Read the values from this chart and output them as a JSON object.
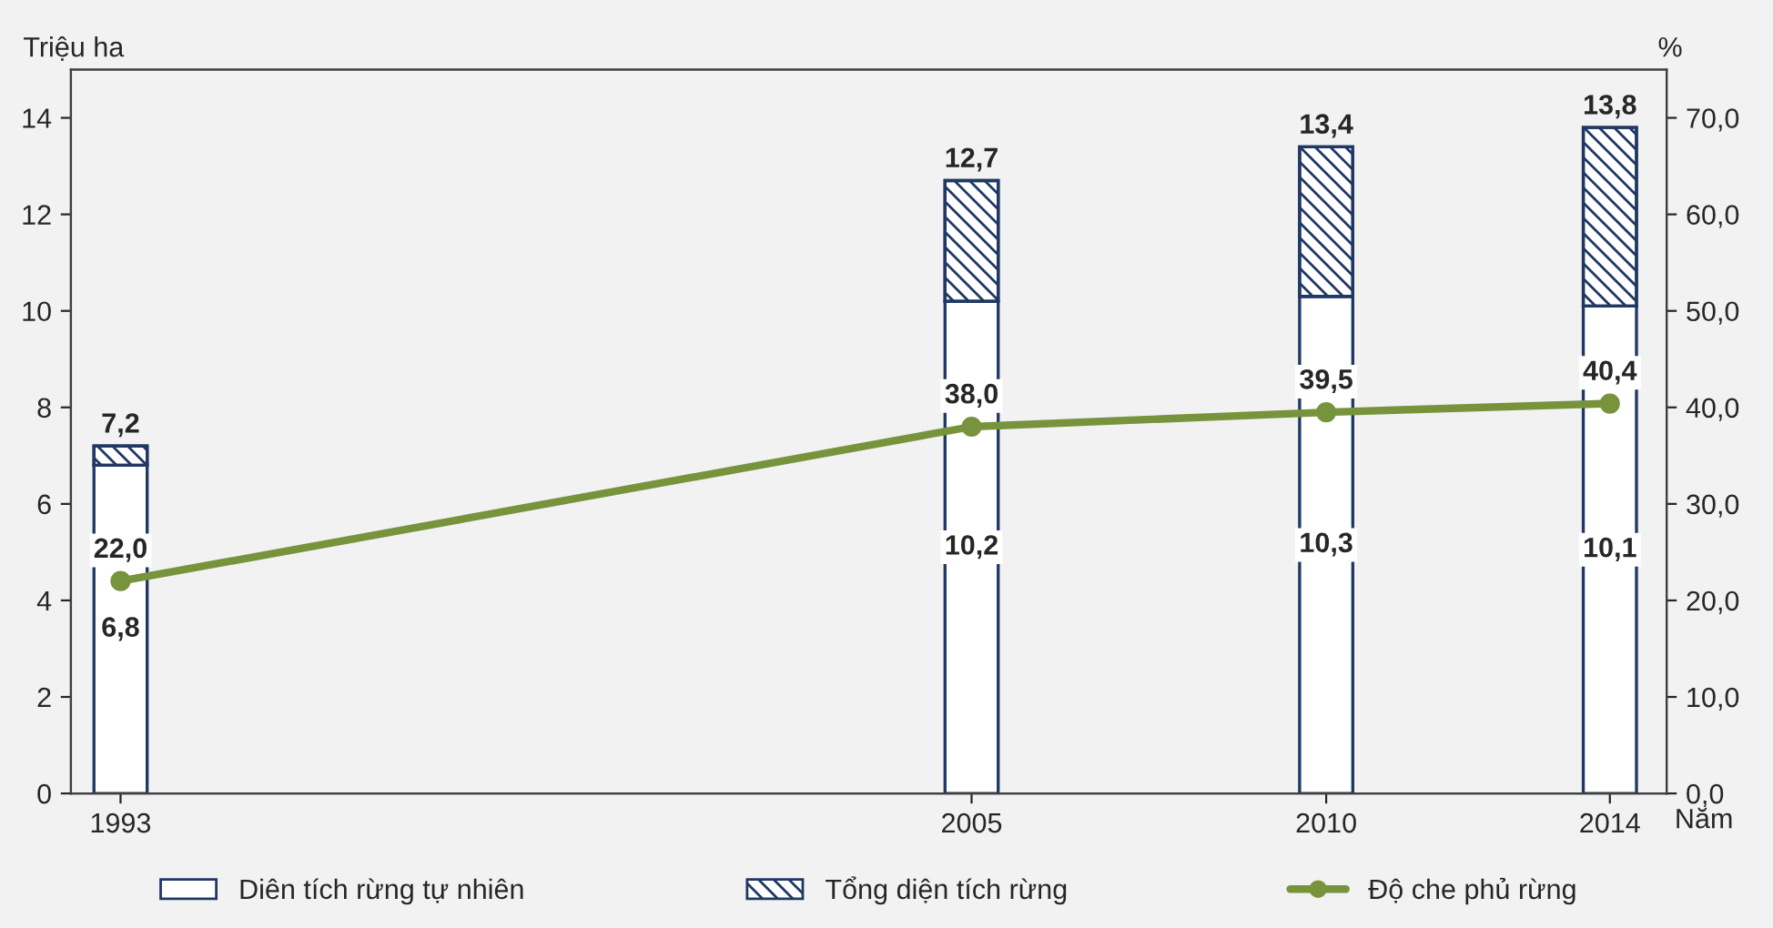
{
  "chart_data": {
    "type": "bar",
    "stacked": true,
    "x": [
      1993,
      2005,
      2010,
      2014
    ],
    "xlim": [
      1992.3,
      2014.8
    ],
    "xticks": [
      1993,
      2005,
      2010,
      2014
    ],
    "ylim": [
      0,
      15
    ],
    "yticks": [
      0,
      2,
      4,
      6,
      8,
      10,
      12,
      14
    ],
    "y2lim": [
      0,
      75
    ],
    "y2ticks": [
      {
        "value": 0,
        "label": "0,0"
      },
      {
        "value": 10,
        "label": "10,0"
      },
      {
        "value": 20,
        "label": "20,0"
      },
      {
        "value": 30,
        "label": "30,0"
      },
      {
        "value": 40,
        "label": "40,0"
      },
      {
        "value": 50,
        "label": "50,0"
      },
      {
        "value": 60,
        "label": "60,0"
      },
      {
        "value": 70,
        "label": "70,0"
      }
    ],
    "ylabel": "Triệu ha",
    "y2label": "%",
    "xlabel": "Năm",
    "series": [
      {
        "name": "Diên tích rừng tự nhiên",
        "color": "#ffffff",
        "values": [
          6.8,
          10.2,
          10.3,
          10.1
        ],
        "value_labels": [
          "6,8",
          "10,2",
          "10,3",
          "10,1"
        ]
      },
      {
        "name": "Tổng diện tích rừng",
        "color": "#1f3864",
        "values": [
          0.4,
          2.5,
          3.1,
          3.7
        ]
      },
      {
        "name": "Độ che phủ rừng",
        "type": "line",
        "axis": "y2",
        "color": "#77933c",
        "marker": "circle",
        "values": [
          22.0,
          38.0,
          39.5,
          40.4
        ],
        "value_labels": [
          "22,0",
          "38,0",
          "39,5",
          "40,4"
        ]
      }
    ],
    "totals": [
      "7,2",
      "12,7",
      "13,4",
      "13,8"
    ],
    "legend": "bottom",
    "grid": false
  }
}
